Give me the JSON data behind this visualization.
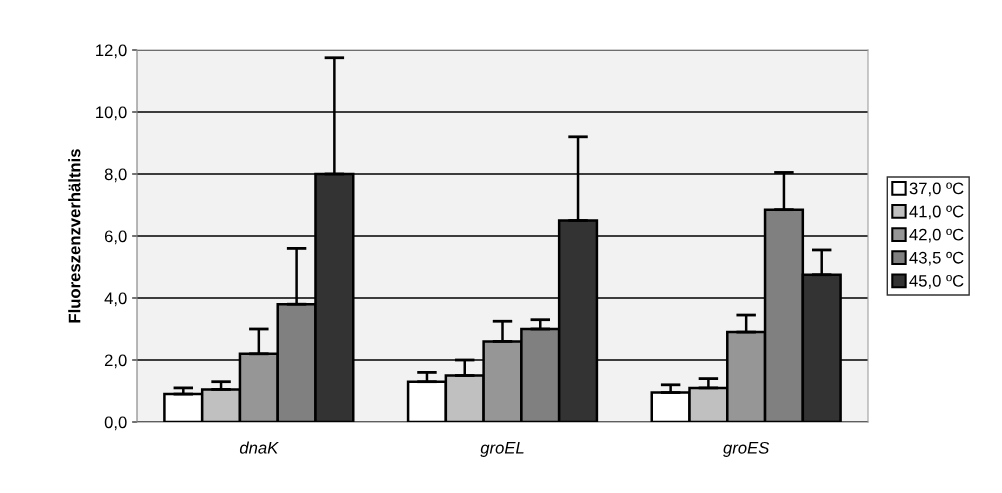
{
  "chart_data": {
    "type": "bar",
    "ylabel": "Fluoreszenzverhältnis",
    "categories": [
      "dnaK",
      "groEL",
      "groES"
    ],
    "series": [
      {
        "name": "37,0 ºC",
        "color": "#ffffff",
        "values": [
          0.9,
          1.3,
          0.95
        ],
        "errors": [
          [
            0.9,
            1.1
          ],
          [
            1.3,
            1.6
          ],
          [
            0.95,
            1.2
          ]
        ]
      },
      {
        "name": "41,0 ºC",
        "color": "#c0c0c0",
        "values": [
          1.05,
          1.5,
          1.1
        ],
        "errors": [
          [
            1.05,
            1.3
          ],
          [
            1.5,
            2.0
          ],
          [
            1.1,
            1.4
          ]
        ]
      },
      {
        "name": "42,0 ºC",
        "color": "#969696",
        "values": [
          2.2,
          2.6,
          2.9
        ],
        "errors": [
          [
            2.2,
            3.0
          ],
          [
            2.6,
            3.25
          ],
          [
            2.9,
            3.45
          ]
        ]
      },
      {
        "name": "43,5 ºC",
        "color": "#808080",
        "values": [
          3.8,
          3.0,
          6.85
        ],
        "errors": [
          [
            3.8,
            5.6
          ],
          [
            3.0,
            3.3
          ],
          [
            6.85,
            8.05
          ]
        ]
      },
      {
        "name": "45,0 ºC",
        "color": "#333333",
        "values": [
          8.0,
          6.5,
          4.75
        ],
        "errors": [
          [
            8.0,
            11.75
          ],
          [
            6.5,
            9.2
          ],
          [
            4.75,
            5.55
          ]
        ]
      }
    ],
    "ylim": [
      0,
      12
    ],
    "yticks": [
      {
        "value": 0,
        "label": "0,0"
      },
      {
        "value": 2,
        "label": "2,0"
      },
      {
        "value": 4,
        "label": "4,0"
      },
      {
        "value": 6,
        "label": "6,0"
      },
      {
        "value": 8,
        "label": "8,0"
      },
      {
        "value": 10,
        "label": "10,0"
      },
      {
        "value": 12,
        "label": "12,0"
      }
    ],
    "grid": "y",
    "legend": "right"
  }
}
